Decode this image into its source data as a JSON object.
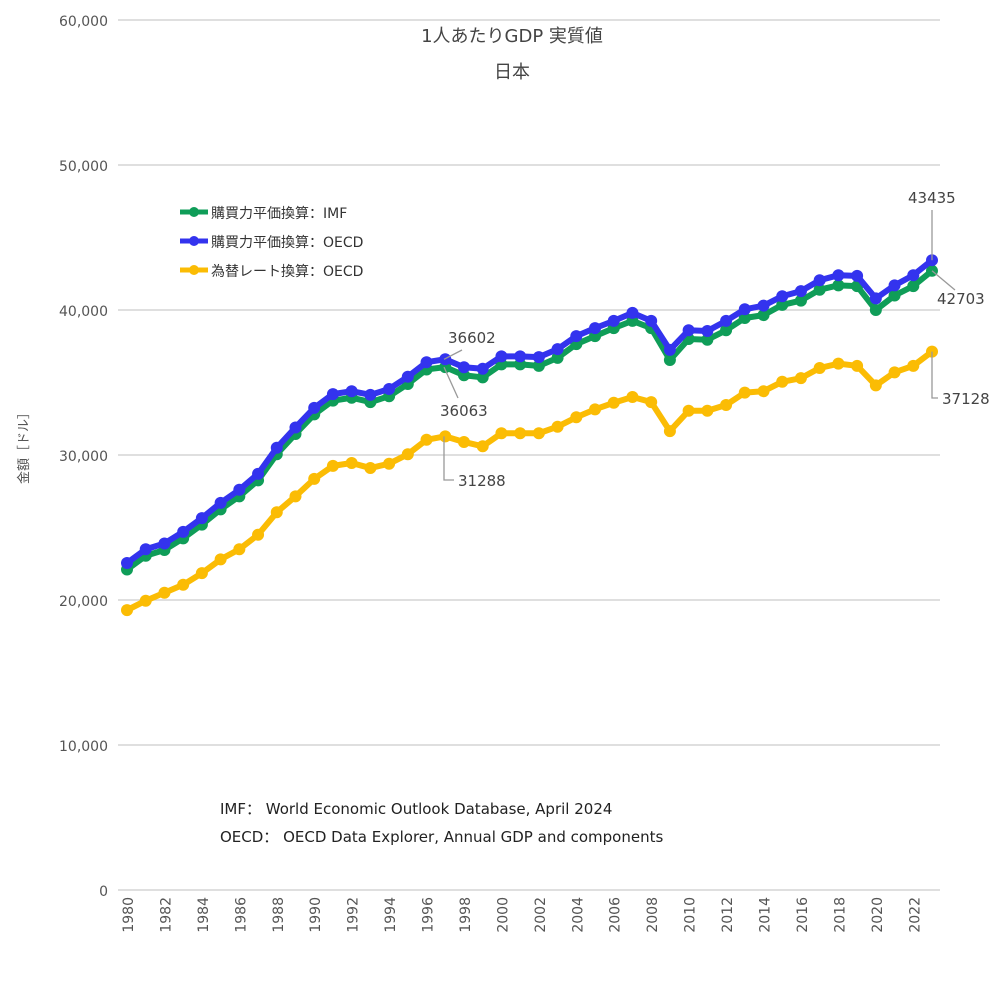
{
  "chart_data": {
    "type": "line",
    "title": "1人あたりGDP 実質値",
    "subtitle": "日本",
    "xlabel": "",
    "ylabel": "金額［ドル］",
    "ylim": [
      0,
      60000
    ],
    "yticks": [
      "0",
      "10,000",
      "20,000",
      "30,000",
      "40,000",
      "50,000",
      "60,000"
    ],
    "grid": true,
    "legend_position": "top-left",
    "xtick_labels": [
      "1980",
      "1982",
      "1984",
      "1986",
      "1988",
      "1990",
      "1992",
      "1994",
      "1996",
      "1998",
      "2000",
      "2002",
      "2004",
      "2006",
      "2008",
      "2010",
      "2012",
      "2014",
      "2016",
      "2018",
      "2020",
      "2022"
    ],
    "x": [
      1980,
      1981,
      1982,
      1983,
      1984,
      1985,
      1986,
      1987,
      1988,
      1989,
      1990,
      1991,
      1992,
      1993,
      1994,
      1995,
      1996,
      1997,
      1998,
      1999,
      2000,
      2001,
      2002,
      2003,
      2004,
      2005,
      2006,
      2007,
      2008,
      2009,
      2010,
      2011,
      2012,
      2013,
      2014,
      2015,
      2016,
      2017,
      2018,
      2019,
      2020,
      2021,
      2022,
      2023
    ],
    "series": [
      {
        "name": "為替レート換算：OECD",
        "color": "#FBBC04",
        "values": [
          19300,
          19950,
          20500,
          21050,
          21850,
          22800,
          23500,
          24500,
          26050,
          27150,
          28350,
          29250,
          29450,
          29100,
          29400,
          30050,
          31050,
          31288,
          30900,
          30600,
          31500,
          31500,
          31500,
          31950,
          32600,
          33150,
          33600,
          34000,
          33650,
          31650,
          33050,
          33050,
          33450,
          34300,
          34400,
          35050,
          35300,
          36000,
          36300,
          36150,
          34800,
          35700,
          36150,
          37128
        ]
      },
      {
        "name": "購買力平価換算：IMF",
        "color": "#0F9D58",
        "values": [
          22100,
          23050,
          23450,
          24250,
          25200,
          26250,
          27150,
          28250,
          30050,
          31450,
          32800,
          33750,
          33950,
          33650,
          34050,
          34900,
          35900,
          36063,
          35500,
          35350,
          36250,
          36250,
          36150,
          36700,
          37650,
          38200,
          38750,
          39250,
          38750,
          36550,
          38000,
          37950,
          38600,
          39450,
          39650,
          40350,
          40650,
          41400,
          41700,
          41650,
          40000,
          41000,
          41650,
          42703
        ]
      },
      {
        "name": "購買力平価換算：OECD",
        "color": "#3333EE",
        "values": [
          22550,
          23500,
          23900,
          24700,
          25650,
          26700,
          27600,
          28700,
          30500,
          31900,
          33250,
          34200,
          34400,
          34150,
          34550,
          35400,
          36400,
          36602,
          36050,
          35950,
          36800,
          36800,
          36750,
          37300,
          38200,
          38750,
          39250,
          39800,
          39250,
          37250,
          38600,
          38550,
          39250,
          40050,
          40300,
          40950,
          41300,
          42050,
          42400,
          42350,
          40800,
          41700,
          42400,
          43435
        ]
      }
    ],
    "annotations": [
      "36602",
      "36063",
      "31288",
      "43435",
      "42703",
      "37128"
    ],
    "sources": [
      "IMF： World Economic Outlook Database, April 2024",
      "OECD： OECD Data Explorer, Annual GDP and components"
    ]
  }
}
